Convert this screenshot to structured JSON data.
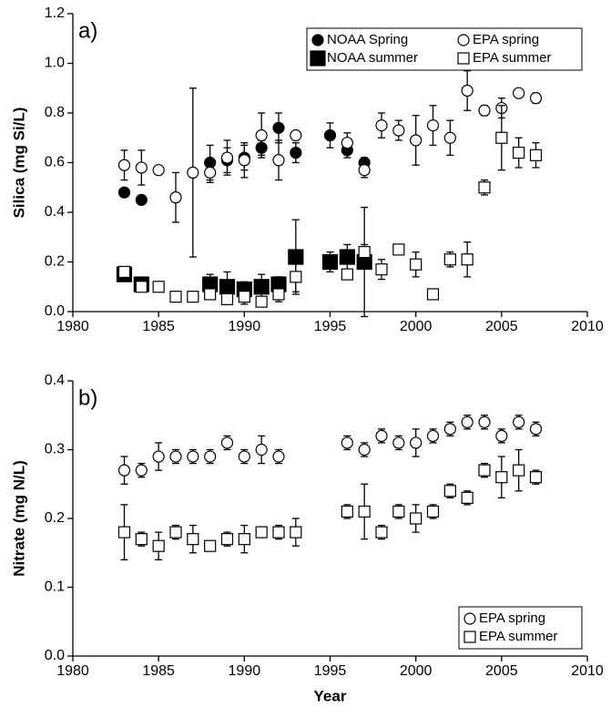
{
  "chart_data": [
    {
      "type": "scatter",
      "panel_label": "a)",
      "ylabel": "Silica (mg Si/L)",
      "xlim": [
        1980,
        2010
      ],
      "xticks": [
        1980,
        1985,
        1990,
        1995,
        2000,
        2005,
        2010
      ],
      "ylim": [
        0,
        1.2
      ],
      "yticks": [
        {
          "value": 0,
          "label": "0.0"
        },
        0.2,
        0.4,
        0.6,
        0.8,
        {
          "value": 1,
          "label": "1.0"
        },
        1.2
      ],
      "legend": "upper right",
      "legend_columns": 2,
      "series": [
        {
          "name": "NOAA Spring",
          "marker": "circle",
          "filled": true,
          "color": "#000000",
          "x": [
            1983,
            1984,
            1988,
            1989,
            1990,
            1991,
            1992,
            1993,
            1995,
            1996,
            1997
          ],
          "values": [
            0.48,
            0.45,
            0.6,
            0.61,
            0.62,
            0.66,
            0.74,
            0.64,
            0.71,
            0.65,
            0.6
          ],
          "errors": [
            null,
            null,
            0.07,
            0.05,
            0.05,
            0.03,
            0.06,
            0.04,
            0.05,
            0.03,
            0.02
          ]
        },
        {
          "name": "EPA spring",
          "marker": "circle",
          "filled": false,
          "color": "#000000",
          "x": [
            1983,
            1984,
            1985,
            1986,
            1987,
            1988,
            1989,
            1990,
            1991,
            1992,
            1993,
            1996,
            1997,
            1998,
            1999,
            2000,
            2001,
            2002,
            2003,
            2004,
            2005,
            2006,
            2007
          ],
          "values": [
            0.59,
            0.58,
            0.57,
            0.46,
            0.56,
            0.56,
            0.62,
            0.61,
            0.71,
            0.61,
            0.71,
            0.68,
            0.57,
            0.75,
            0.73,
            0.69,
            0.75,
            0.7,
            0.89,
            0.81,
            0.82,
            0.88,
            0.86
          ],
          "errors": [
            0.06,
            0.07,
            0.01,
            0.1,
            0.34,
            0.04,
            0.07,
            0.07,
            0.09,
            0.08,
            null,
            0.04,
            0.03,
            0.05,
            0.04,
            0.1,
            0.08,
            0.07,
            0.08,
            0.02,
            0.04,
            0.01,
            0.02
          ]
        },
        {
          "name": "NOAA summer",
          "marker": "square",
          "filled": true,
          "color": "#000000",
          "x": [
            1983,
            1984,
            1988,
            1989,
            1990,
            1991,
            1992,
            1993,
            1995,
            1996,
            1997
          ],
          "values": [
            0.15,
            0.11,
            0.11,
            0.1,
            0.09,
            0.1,
            0.11,
            0.22,
            0.2,
            0.22,
            0.2
          ],
          "errors": [
            null,
            null,
            0.04,
            0.06,
            0.03,
            0.05,
            0.03,
            0.15,
            0.04,
            0.05,
            0.22
          ]
        },
        {
          "name": "EPA summer",
          "marker": "square",
          "filled": false,
          "color": "#000000",
          "x": [
            1983,
            1984,
            1985,
            1986,
            1987,
            1988,
            1989,
            1990,
            1991,
            1992,
            1993,
            1996,
            1997,
            1998,
            1999,
            2000,
            2001,
            2002,
            2003,
            2004,
            2005,
            2006,
            2007
          ],
          "values": [
            0.16,
            0.1,
            0.1,
            0.06,
            0.06,
            0.07,
            0.05,
            0.06,
            0.04,
            0.07,
            0.14,
            0.15,
            0.24,
            0.17,
            0.25,
            0.19,
            0.07,
            0.21,
            0.21,
            0.5,
            0.7,
            0.64,
            0.63
          ],
          "errors": [
            null,
            null,
            null,
            null,
            0.02,
            0.02,
            0.02,
            0.03,
            0.02,
            0.03,
            0.06,
            null,
            0.03,
            0.04,
            null,
            0.05,
            null,
            0.03,
            0.07,
            0.03,
            0.13,
            0.06,
            0.05
          ]
        }
      ]
    },
    {
      "type": "scatter",
      "panel_label": "b)",
      "ylabel": "Nitrate (mg N/L)",
      "xlabel": "Year",
      "xlim": [
        1980,
        2010
      ],
      "xticks": [
        1980,
        1985,
        1990,
        1995,
        2000,
        2005,
        2010
      ],
      "ylim": [
        0,
        0.4
      ],
      "yticks": [
        {
          "value": 0,
          "label": "0.0"
        },
        0.1,
        0.2,
        0.3,
        0.4
      ],
      "legend": "lower right",
      "legend_columns": 1,
      "series": [
        {
          "name": "EPA spring",
          "marker": "circle",
          "filled": false,
          "color": "#000000",
          "x": [
            1983,
            1984,
            1985,
            1986,
            1987,
            1988,
            1989,
            1990,
            1991,
            1992,
            1996,
            1997,
            1998,
            1999,
            2000,
            2001,
            2002,
            2003,
            2004,
            2005,
            2006,
            2007
          ],
          "values": [
            0.27,
            0.27,
            0.29,
            0.29,
            0.29,
            0.29,
            0.31,
            0.29,
            0.3,
            0.29,
            0.31,
            0.3,
            0.32,
            0.31,
            0.31,
            0.32,
            0.33,
            0.34,
            0.34,
            0.32,
            0.34,
            0.33
          ],
          "errors": [
            0.02,
            0.01,
            0.02,
            0.01,
            0.01,
            0.01,
            0.01,
            0.01,
            0.02,
            0.01,
            0.01,
            0.01,
            0.01,
            0.01,
            0.02,
            0.01,
            0.01,
            0.01,
            0.01,
            0.01,
            0.01,
            0.01
          ]
        },
        {
          "name": "EPA summer",
          "marker": "square",
          "filled": false,
          "color": "#000000",
          "x": [
            1983,
            1984,
            1985,
            1986,
            1987,
            1988,
            1989,
            1990,
            1991,
            1992,
            1993,
            1996,
            1997,
            1998,
            1999,
            2000,
            2001,
            2002,
            2003,
            2004,
            2005,
            2006,
            2007
          ],
          "values": [
            0.18,
            0.17,
            0.16,
            0.18,
            0.17,
            0.16,
            0.17,
            0.17,
            0.18,
            0.18,
            0.18,
            0.21,
            0.21,
            0.18,
            0.21,
            0.2,
            0.21,
            0.24,
            0.23,
            0.27,
            0.26,
            0.27,
            0.26
          ],
          "errors": [
            0.04,
            0.01,
            0.02,
            0.01,
            0.02,
            null,
            0.01,
            0.02,
            null,
            0.01,
            0.02,
            0.01,
            0.04,
            0.01,
            0.01,
            0.02,
            0.01,
            0.01,
            0.01,
            0.01,
            0.03,
            0.03,
            0.01
          ]
        }
      ]
    }
  ]
}
